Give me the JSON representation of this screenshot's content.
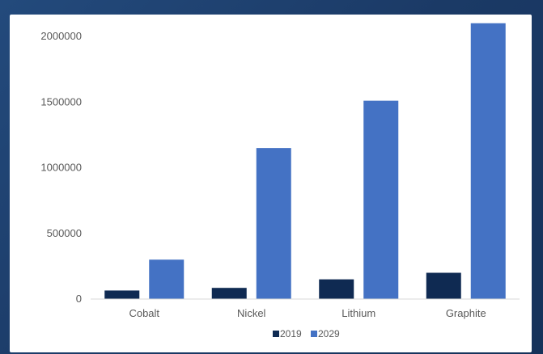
{
  "chart_data": {
    "type": "bar",
    "title": "",
    "xlabel": "",
    "ylabel": "",
    "categories": [
      "Cobalt",
      "Nickel",
      "Lithium",
      "Graphite"
    ],
    "series": [
      {
        "name": "2019",
        "color": "#0f2a52",
        "values": [
          65000,
          85000,
          150000,
          200000
        ]
      },
      {
        "name": "2029",
        "color": "#4472c4",
        "values": [
          300000,
          1150000,
          1510000,
          2100000
        ]
      }
    ],
    "ylim": [
      0,
      2000000
    ],
    "yticks": [
      "0",
      "500000",
      "1000000",
      "1500000",
      "2000000"
    ],
    "grid": false,
    "legend_position": "bottom"
  }
}
